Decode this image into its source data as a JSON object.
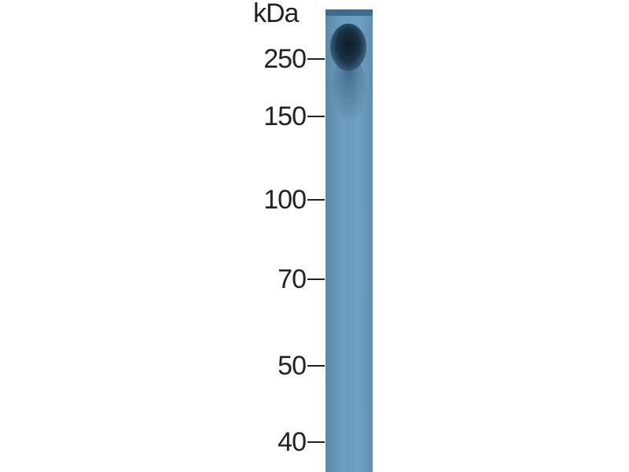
{
  "blot": {
    "unit_label": "kDa",
    "lane_color": "#6b9bbd",
    "band_color": "#0f1c28",
    "markers": [
      {
        "label": "250"
      },
      {
        "label": "150"
      },
      {
        "label": "100"
      },
      {
        "label": "70"
      },
      {
        "label": "50"
      },
      {
        "label": "40"
      }
    ]
  }
}
